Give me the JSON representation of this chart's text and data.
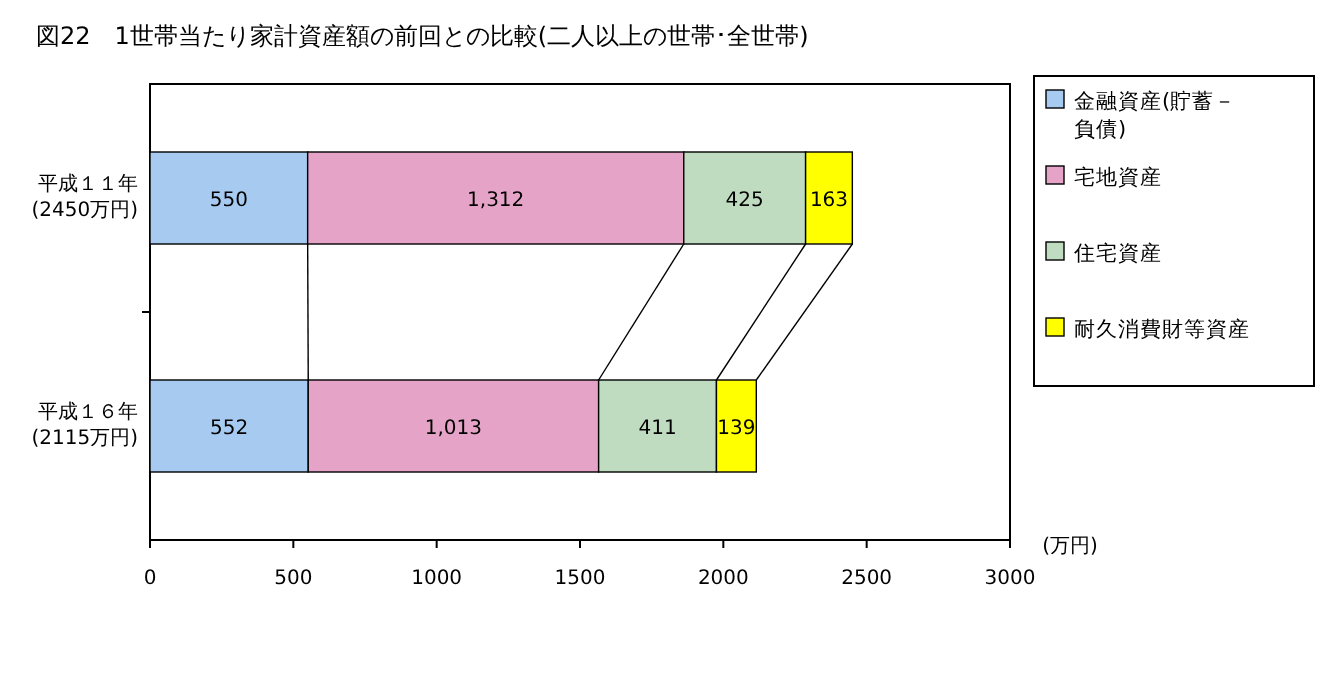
{
  "chart_data": {
    "type": "bar",
    "orientation": "horizontal",
    "stacked": true,
    "title": "図22　1世帯当たり家計資産額の前回との比較(二人以上の世帯･全世帯)",
    "categories": [
      "平成１１年\n(2450万円)",
      "平成１６年\n(2115万円)"
    ],
    "series": [
      {
        "name": "金融資産(貯蓄－負債)",
        "color": "#a6caf0",
        "values": [
          550,
          552
        ],
        "value_labels": [
          "550",
          "552"
        ]
      },
      {
        "name": "宅地資産",
        "color": "#e6a3c8",
        "values": [
          1312,
          1013
        ],
        "value_labels": [
          "1,312",
          "1,013"
        ]
      },
      {
        "name": "住宅資産",
        "color": "#c0dcc0",
        "values": [
          425,
          411
        ],
        "value_labels": [
          "425",
          "411"
        ]
      },
      {
        "name": "耐久消費財等資産",
        "color": "#ffff00",
        "values": [
          163,
          139
        ],
        "value_labels": [
          "163",
          "139"
        ]
      }
    ],
    "xlim": [
      0,
      3000
    ],
    "xticks": [
      0,
      500,
      1000,
      1500,
      2000,
      2500,
      3000
    ],
    "xlabel": "(万円)",
    "legend": "right",
    "grid": false
  }
}
